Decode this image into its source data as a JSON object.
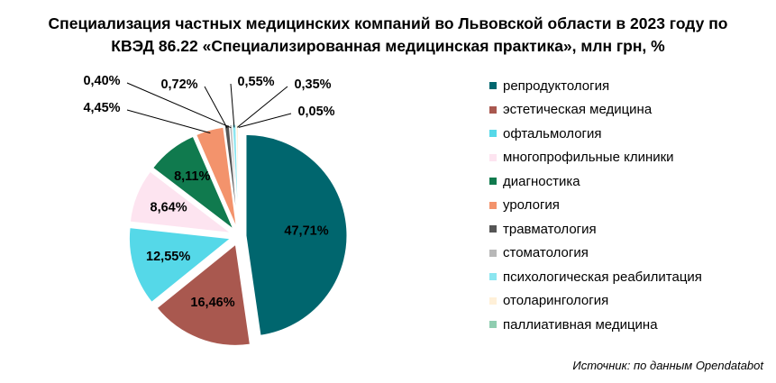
{
  "chart_data": {
    "type": "pie",
    "title_line1": "Специализация частных медицинских компаний во Львовской области в 2023 году по",
    "title_line2": "КВЭД 86.22 «Специализированная медицинская практика», млн грн, %",
    "slices": [
      {
        "name": "репродуктология",
        "value": 47.71,
        "label": "47,71%",
        "color": "#00666e"
      },
      {
        "name": "эстетическая медицина",
        "value": 16.46,
        "label": "16,46%",
        "color": "#a9584f"
      },
      {
        "name": "офтальмология",
        "value": 12.55,
        "label": "12,55%",
        "color": "#55d8e8"
      },
      {
        "name": "многопрофильные клиники",
        "value": 8.64,
        "label": "8,64%",
        "color": "#fde4f0"
      },
      {
        "name": "диагностика",
        "value": 8.11,
        "label": "8,11%",
        "color": "#107a4e"
      },
      {
        "name": "урология",
        "value": 4.45,
        "label": "4,45%",
        "color": "#f3936c"
      },
      {
        "name": "травматология",
        "value": 0.72,
        "label": "0,72%",
        "color": "#555555"
      },
      {
        "name": "стоматология",
        "value": 0.4,
        "label": "0,40%",
        "color": "#b8b8b8"
      },
      {
        "name": "психологическая реабилитация",
        "value": 0.55,
        "label": "0,55%",
        "color": "#8ce6f0"
      },
      {
        "name": "отоларингология",
        "value": 0.35,
        "label": "0,35%",
        "color": "#fff0d8"
      },
      {
        "name": "паллиативная медицина",
        "value": 0.05,
        "label": "0,05%",
        "color": "#8fcdb0"
      }
    ],
    "source": "Источник: по данным Opendatabot"
  }
}
